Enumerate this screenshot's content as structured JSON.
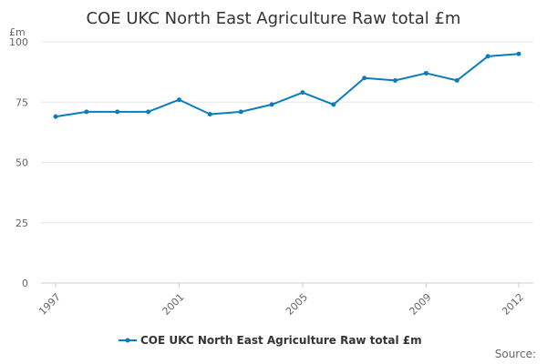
{
  "chart_data": {
    "type": "line",
    "title": "COE UKC North East Agriculture Raw total £m",
    "ylabel": "£m",
    "xlabel": "",
    "ylim": [
      0,
      100
    ],
    "yticks": [
      0,
      25,
      50,
      75,
      100
    ],
    "xlim": [
      1997,
      2012
    ],
    "xticks": [
      1997,
      2001,
      2005,
      2009,
      2012
    ],
    "grid": true,
    "legend_position": "bottom",
    "series": [
      {
        "name": "COE UKC North East Agriculture Raw total £m",
        "color": "#0b7dbc",
        "x": [
          1997,
          1998,
          1999,
          2000,
          2001,
          2002,
          2003,
          2004,
          2005,
          2006,
          2007,
          2008,
          2009,
          2010,
          2011,
          2012
        ],
        "values": [
          69,
          71,
          71,
          71,
          76,
          70,
          71,
          74,
          79,
          74,
          85,
          84,
          87,
          84,
          94,
          95
        ]
      }
    ]
  },
  "footer": {
    "source_label": "Source:"
  }
}
